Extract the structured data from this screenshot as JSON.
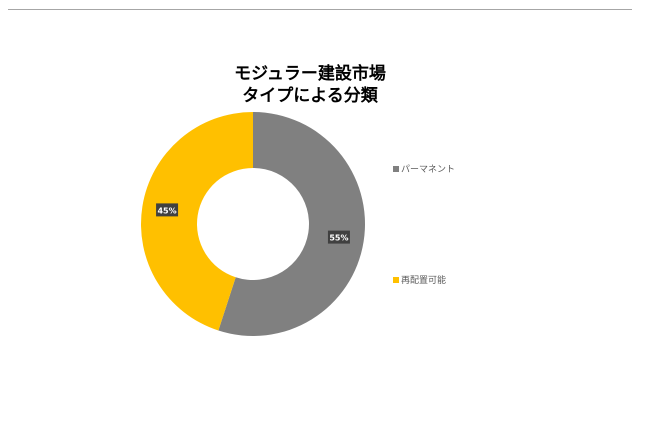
{
  "chart_data": {
    "type": "pie",
    "title_lines": [
      "モジュラー建設市場",
      "タイプによる分類"
    ],
    "donut": true,
    "series": [
      {
        "name": "パーマネント",
        "value": 55,
        "label": "55%",
        "color": "#808080"
      },
      {
        "name": "再配置可能",
        "value": 45,
        "label": "45%",
        "color": "#FFC000"
      }
    ],
    "legend_position": "right"
  }
}
